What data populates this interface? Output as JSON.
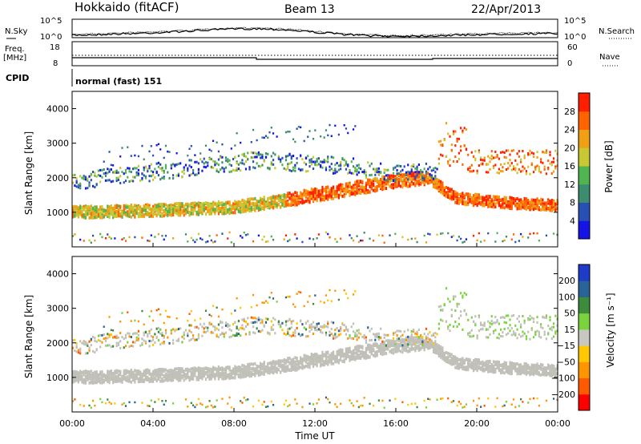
{
  "header": {
    "station": "Hokkaido (fitACF)",
    "beam": "Beam 13",
    "date": "22/Apr/2013"
  },
  "summary": {
    "nsky_label": "N.Sky",
    "nsearch_label": "N.Search",
    "freq_label_1": "Freq.",
    "freq_label_2": "[MHz]",
    "nave_label": "Nave",
    "cpid_label": "CPID",
    "cpid_value": "normal (fast) 151",
    "left_ticks_noise": [
      "10^5",
      "10^0"
    ],
    "right_ticks_noise": [
      "10^5",
      "10^0"
    ],
    "left_ticks_freq": [
      "18",
      "8"
    ],
    "right_ticks_nave": [
      "60",
      "0"
    ]
  },
  "colors": {
    "power": [
      "#1414e6",
      "#2850b4",
      "#3c8c6e",
      "#50b450",
      "#c8c832",
      "#f0a014",
      "#ff6400",
      "#ff1e00"
    ],
    "velocity": [
      "#ff0000",
      "#ff5a00",
      "#ff9600",
      "#ffc800",
      "#c8c8c0",
      "#7ad23c",
      "#3c8c3c",
      "#286496",
      "#1e3cc8"
    ],
    "ground_scatter": "#c0c0b8"
  },
  "chart_data": [
    {
      "type": "heatmap",
      "quantity": "Power",
      "ylabel": "Slant Range [km]",
      "xlabel": "Time UT",
      "x_ticks": [
        "00:00",
        "04:00",
        "08:00",
        "12:00",
        "16:00",
        "20:00",
        "00:00"
      ],
      "x_range_hours": [
        0,
        24
      ],
      "y_ticks": [
        1000,
        2000,
        3000,
        4000
      ],
      "ylim": [
        0,
        4500
      ],
      "colorbar": {
        "label": "Power [dB]",
        "ticks": [
          "4",
          "8",
          "12",
          "16",
          "20",
          "24",
          "28"
        ]
      },
      "features": [
        {
          "name": "lower band",
          "t": [
            0,
            4,
            8,
            10,
            11,
            14,
            16,
            17.5,
            19,
            22,
            24
          ],
          "range_km": [
            1000,
            1050,
            1150,
            1300,
            1400,
            1700,
            1900,
            2000,
            1400,
            1250,
            1200
          ]
        },
        {
          "name": "upper band",
          "t": [
            0,
            3,
            6,
            9,
            12,
            14,
            16,
            18
          ],
          "range_km": [
            1900,
            2100,
            2300,
            2500,
            2400,
            2300,
            2100,
            2200
          ]
        },
        {
          "name": "high range scatter",
          "t": [
            2,
            6,
            9.5,
            13
          ],
          "range_km": [
            2600,
            2900,
            3200,
            3300
          ]
        }
      ]
    },
    {
      "type": "heatmap",
      "quantity": "Velocity",
      "ylabel": "Slant Range [km]",
      "xlabel": "Time UT",
      "x_ticks": [
        "00:00",
        "04:00",
        "08:00",
        "12:00",
        "16:00",
        "20:00",
        "00:00"
      ],
      "x_range_hours": [
        0,
        24
      ],
      "y_ticks": [
        1000,
        2000,
        3000,
        4000
      ],
      "ylim": [
        0,
        4500
      ],
      "colorbar": {
        "label": "Velocity [m s⁻¹]",
        "ticks": [
          "200",
          "100",
          "50",
          "15",
          "−15",
          "−50",
          "−100",
          "−200"
        ]
      }
    }
  ]
}
